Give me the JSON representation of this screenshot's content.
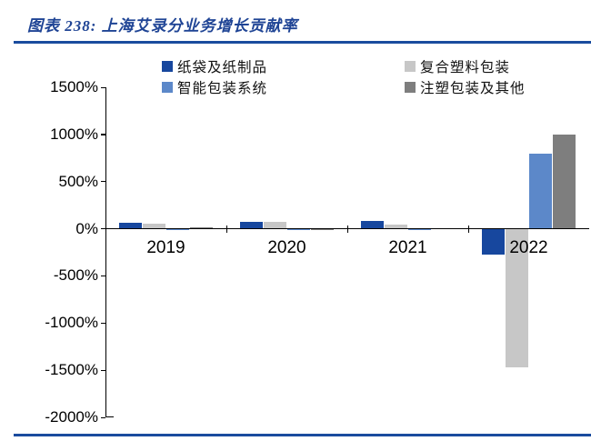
{
  "header": {
    "title": "图表 238: 上海艾录分业务增长贡献率"
  },
  "chart_data": {
    "type": "bar",
    "title": "上海艾录分业务增长贡献率",
    "categories": [
      "2019",
      "2020",
      "2021",
      "2022"
    ],
    "series": [
      {
        "name": "纸袋及纸制品",
        "color": "#17479e",
        "values": [
          60,
          70,
          80,
          -270
        ]
      },
      {
        "name": "复合塑料包装",
        "color": "#c7c7c7",
        "values": [
          55,
          75,
          45,
          -1470
        ]
      },
      {
        "name": "智能包装系统",
        "color": "#5c88c9",
        "values": [
          -15,
          -10,
          -10,
          800
        ]
      },
      {
        "name": "注塑包装及其他",
        "color": "#7e7e7e",
        "values": [
          15,
          5,
          10,
          1000
        ]
      }
    ],
    "ylim": [
      -2000,
      1500
    ],
    "ytick_step": 500,
    "ytick_labels": [
      "1500%",
      "1000%",
      "500%",
      "0%",
      "-500%",
      "-1000%",
      "-1500%",
      "-2000%"
    ],
    "xlabel": "",
    "ylabel": "",
    "grid": "off",
    "legend_position": "top",
    "legend_rows": [
      [
        "纸袋及纸制品",
        "复合塑料包装"
      ],
      [
        "智能包装系统",
        "注塑包装及其他"
      ]
    ]
  },
  "accents": {
    "rule_blue": "#1a4c9e",
    "title_blue": "#1f4495",
    "axis_black": "#000000"
  }
}
